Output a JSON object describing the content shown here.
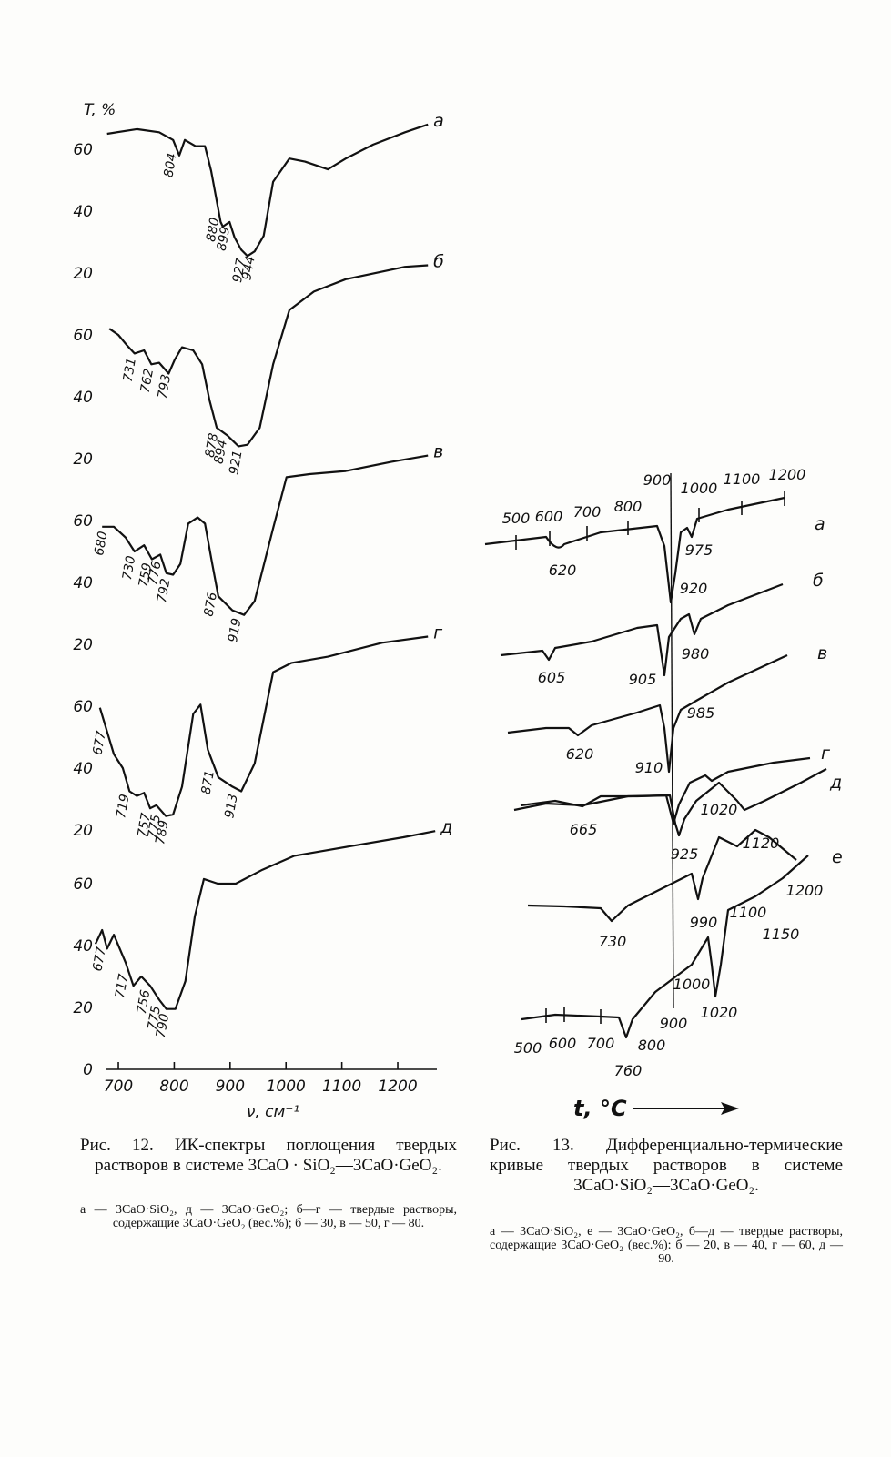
{
  "chart_data": [
    {
      "type": "line",
      "ylabel": "T, %",
      "ylim": [
        20,
        80
      ],
      "yticks": [
        20,
        40,
        60
      ],
      "x": [
        680,
        733,
        773,
        798,
        809,
        819,
        838,
        855,
        866,
        883,
        887,
        899,
        908,
        920,
        931,
        944,
        960,
        977,
        1006,
        1034,
        1075,
        1107,
        1156,
        1213,
        1254
      ],
      "series": [
        {
          "name": "а",
          "color": "#111111",
          "values": [
            65,
            66.5,
            65.5,
            63,
            58,
            63,
            61,
            61,
            53,
            36.5,
            35,
            36.5,
            31.5,
            27.5,
            25.5,
            27,
            32,
            49.5,
            57,
            56,
            53.5,
            57,
            61.5,
            65.5,
            68
          ]
        }
      ],
      "peak_labels": [
        804,
        880,
        899,
        927,
        944
      ]
    },
    {
      "type": "line",
      "ylim": [
        20,
        80
      ],
      "yticks": [
        20,
        40,
        60
      ],
      "x": [
        684,
        700,
        716,
        729,
        746,
        759,
        773,
        790,
        801,
        814,
        834,
        850,
        863,
        876,
        895,
        915,
        931,
        953,
        977,
        1006,
        1050,
        1107,
        1213,
        1254
      ],
      "series": [
        {
          "name": "б",
          "color": "#111111",
          "values": [
            62,
            60,
            56.5,
            54,
            55,
            50.5,
            51,
            47.5,
            52,
            56,
            55,
            50.5,
            39,
            30,
            27.5,
            24,
            24.5,
            30,
            50.5,
            68,
            74,
            78,
            82,
            82.5
          ]
        }
      ],
      "peak_labels": [
        731,
        762,
        793,
        878,
        894,
        921
      ]
    },
    {
      "type": "line",
      "ylim": [
        20,
        80
      ],
      "yticks": [
        20,
        40,
        60
      ],
      "x": [
        671,
        692,
        713,
        729,
        746,
        760,
        775,
        786,
        798,
        811,
        825,
        842,
        855,
        868,
        879,
        904,
        925,
        944,
        977,
        1001,
        1042,
        1107,
        1189,
        1254
      ],
      "series": [
        {
          "name": "в",
          "color": "#111111",
          "values": [
            58,
            58,
            54.5,
            50,
            52,
            47.5,
            49,
            43,
            42.5,
            46,
            59,
            61,
            59,
            46,
            35.5,
            31,
            29.5,
            34,
            57.5,
            74,
            75,
            76,
            79,
            81
          ]
        }
      ],
      "peak_labels": [
        680,
        730,
        759,
        776,
        792,
        876,
        919
      ]
    },
    {
      "type": "line",
      "ylim": [
        20,
        80
      ],
      "yticks": [
        20,
        40,
        60
      ],
      "x": [
        667,
        692,
        708,
        720,
        733,
        746,
        757,
        768,
        785,
        798,
        814,
        834,
        847,
        860,
        879,
        904,
        920,
        944,
        977,
        1010,
        1075,
        1172,
        1254
      ],
      "series": [
        {
          "name": "г",
          "color": "#111111",
          "values": [
            59.5,
            44.5,
            40,
            32.5,
            31,
            32,
            27,
            28,
            24.5,
            25,
            34,
            57.5,
            60.5,
            46,
            37,
            34,
            32.5,
            41.5,
            71,
            74,
            76,
            80.5,
            82.5
          ]
        }
      ],
      "peak_labels": [
        677,
        719,
        757,
        775,
        789,
        871,
        913
      ]
    },
    {
      "type": "line",
      "ylim": [
        0,
        80
      ],
      "yticks": [
        0,
        20,
        40,
        60
      ],
      "xlabel": "ν, см⁻¹",
      "xlim": [
        655,
        1270
      ],
      "xticks": [
        700,
        800,
        900,
        1000,
        1100,
        1200
      ],
      "x": [
        659,
        671,
        680,
        692,
        713,
        727,
        741,
        757,
        773,
        786,
        802,
        820,
        837,
        853,
        878,
        910,
        958,
        1015,
        1112,
        1210,
        1267
      ],
      "series": [
        {
          "name": "д",
          "color": "#111111",
          "values": [
            40.5,
            45,
            39,
            43.5,
            34.5,
            27,
            30,
            27,
            22.5,
            19.5,
            19.5,
            28.5,
            49.5,
            61.5,
            60,
            60,
            64.5,
            69,
            72,
            75,
            77
          ]
        }
      ],
      "peak_labels": [
        677,
        717,
        756,
        775,
        790
      ]
    }
  ],
  "figure12": {
    "caption": "Рис. 12. ИК-спектры поглощения твердых растворов в системе 3CaO · SiO₂—3CaO·GeO₂.",
    "legend": "а — 3CaO·SiO₂, д — 3CaO·GeO₂; б—г — твердые растворы, содержащие 3CaO·GeO₂ (вес.%); б — 30, в — 50, г — 80."
  },
  "figure13": {
    "curve_names": [
      "а",
      "б",
      "в",
      "г",
      "д",
      "е"
    ],
    "temperature_labels": [
      "500",
      "600",
      "700",
      "800",
      "900",
      "1000",
      "1100",
      "1200",
      "620",
      "975",
      "920",
      "605",
      "905",
      "980",
      "620",
      "985",
      "910",
      "1020",
      "665",
      "925",
      "1120",
      "730",
      "990",
      "1100",
      "1150",
      "1200",
      "1000",
      "900",
      "1020",
      "500",
      "600",
      "700",
      "760",
      "800"
    ],
    "x_label": "t, °C",
    "caption": "Рис. 13. Дифференциально-термические кривые твердых растворов в системе 3CaO·SiO₂—3CaO·GeO₂.",
    "legend": "а — 3CaO·SiO₂, е — 3CaO·GeO₂, б—д — твердые растворы, содержащие 3CaO·GeO₂ (вес.%): б — 20, в — 40, г — 60, д — 90."
  }
}
